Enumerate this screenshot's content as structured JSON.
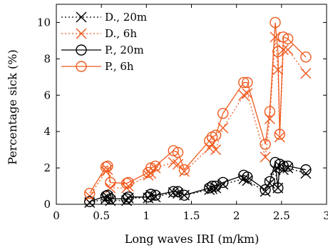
{
  "chart_data": {
    "type": "line",
    "xlabel": "Long waves IRI (m/km)",
    "ylabel": "Percentage sick (%)",
    "xlim": [
      0,
      3
    ],
    "ylim": [
      0,
      11
    ],
    "xticks": [
      "0",
      "0.5",
      "1",
      "1.5",
      "2",
      "2.5",
      "3"
    ],
    "yticks": [
      "0",
      "2",
      "4",
      "6",
      "8",
      "10"
    ],
    "grid": false,
    "legend_position": "top-left",
    "series": [
      {
        "name": "D., 20m",
        "color": "#000000",
        "marker": "x",
        "dash": "dotted",
        "x": [
          0.37,
          0.55,
          0.57,
          0.6,
          0.78,
          0.8,
          1.02,
          1.05,
          1.1,
          1.3,
          1.35,
          1.42,
          1.7,
          1.73,
          1.77,
          1.85,
          2.08,
          2.12,
          2.32,
          2.37,
          2.43,
          2.46,
          2.48,
          2.52,
          2.57,
          2.77
        ],
        "values": [
          0.1,
          0.3,
          0.4,
          0.2,
          0.2,
          0.35,
          0.35,
          0.5,
          0.4,
          0.65,
          0.6,
          0.5,
          0.8,
          0.85,
          0.9,
          1.1,
          1.4,
          1.3,
          0.7,
          1.15,
          1.9,
          0.9,
          2.1,
          1.9,
          2.0,
          1.7
        ]
      },
      {
        "name": "D., 6h",
        "color": "#ef5a1f",
        "marker": "x",
        "dash": "dotted",
        "x": [
          0.37,
          0.55,
          0.57,
          0.6,
          0.78,
          0.8,
          1.02,
          1.05,
          1.1,
          1.3,
          1.35,
          1.42,
          1.7,
          1.73,
          1.77,
          1.85,
          2.08,
          2.12,
          2.32,
          2.37,
          2.43,
          2.46,
          2.48,
          2.52,
          2.57,
          2.77
        ],
        "values": [
          0.45,
          1.8,
          1.9,
          0.9,
          0.9,
          1.0,
          1.6,
          1.7,
          2.0,
          2.3,
          2.2,
          1.8,
          3.1,
          3.3,
          3.0,
          4.2,
          6.0,
          6.1,
          2.6,
          4.7,
          9.2,
          7.4,
          3.7,
          8.5,
          8.5,
          7.2
        ]
      },
      {
        "name": "P., 20m",
        "color": "#000000",
        "marker": "o",
        "dash": "solid",
        "x": [
          0.37,
          0.55,
          0.57,
          0.6,
          0.78,
          0.8,
          1.02,
          1.05,
          1.1,
          1.3,
          1.35,
          1.42,
          1.7,
          1.73,
          1.77,
          1.85,
          2.08,
          2.12,
          2.32,
          2.37,
          2.43,
          2.46,
          2.48,
          2.52,
          2.57,
          2.77
        ],
        "values": [
          0.15,
          0.45,
          0.5,
          0.3,
          0.3,
          0.4,
          0.4,
          0.55,
          0.5,
          0.7,
          0.7,
          0.5,
          0.9,
          1.0,
          1.0,
          1.2,
          1.6,
          1.5,
          0.8,
          1.25,
          2.3,
          0.9,
          2.2,
          2.1,
          2.1,
          1.9
        ]
      },
      {
        "name": "P., 6h",
        "color": "#ef5a1f",
        "marker": "o",
        "dash": "solid",
        "x": [
          0.37,
          0.55,
          0.57,
          0.6,
          0.78,
          0.8,
          1.02,
          1.05,
          1.1,
          1.3,
          1.35,
          1.42,
          1.7,
          1.73,
          1.77,
          1.85,
          2.08,
          2.12,
          2.32,
          2.37,
          2.43,
          2.46,
          2.48,
          2.52,
          2.57,
          2.77
        ],
        "values": [
          0.6,
          2.05,
          2.1,
          1.2,
          1.15,
          1.2,
          1.75,
          2.0,
          2.1,
          2.95,
          2.85,
          1.9,
          3.5,
          3.7,
          3.8,
          5.0,
          6.7,
          6.7,
          3.3,
          5.1,
          10.0,
          8.4,
          3.85,
          9.2,
          9.1,
          8.1
        ]
      }
    ]
  }
}
